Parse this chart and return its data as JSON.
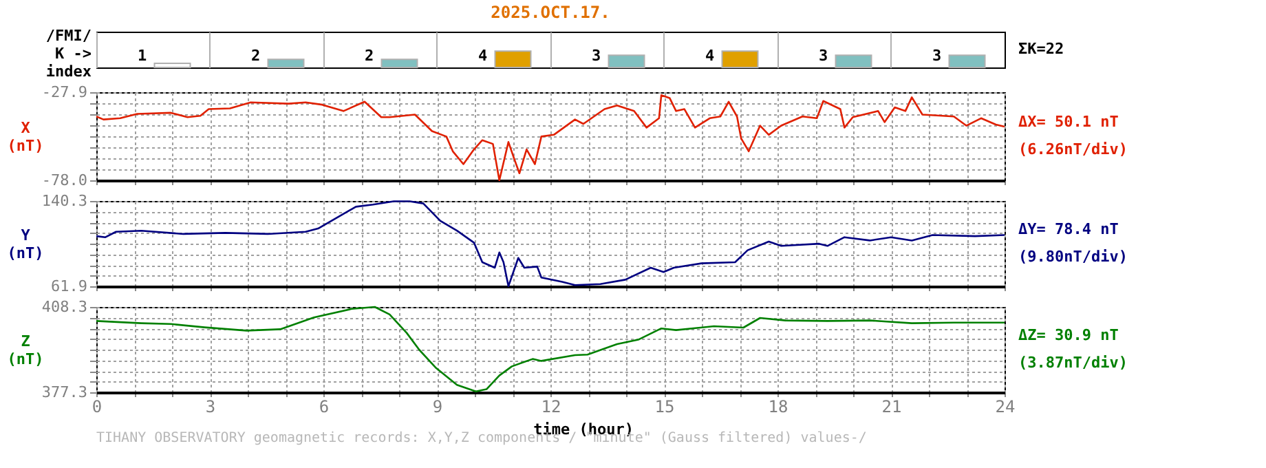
{
  "chart_data": [
    {
      "type": "bar",
      "title": "2025.OCT.17.",
      "ylabel": "/FMI/\nK ->\nindex",
      "categories": [
        null,
        null,
        null,
        null,
        null,
        null,
        null,
        null
      ],
      "values": [
        1,
        2,
        2,
        4,
        3,
        4,
        3,
        3
      ],
      "colors": [
        "#ffffff",
        "#80c0c0",
        "#80c0c0",
        "#e0a000",
        "#80c0c0",
        "#e0a000",
        "#80c0c0",
        "#80c0c0"
      ],
      "data_labels": true,
      "tick_labels": false,
      "annotations": [
        "ΣK=22"
      ]
    },
    {
      "type": "line",
      "ylabel": "X\n(nT)",
      "xlim": [
        0,
        24
      ],
      "ylim": [
        -78.0,
        -27.9
      ],
      "grid": true,
      "tick_labels": "y",
      "xticks": [
        0,
        {
          "value": 1,
          "label": null
        },
        {
          "value": 2,
          "label": null
        },
        3,
        {
          "value": 4,
          "label": null
        },
        {
          "value": 5,
          "label": null
        },
        6,
        {
          "value": 7,
          "label": null
        },
        {
          "value": 8,
          "label": null
        },
        9,
        {
          "value": 10,
          "label": null
        },
        {
          "value": 11,
          "label": null
        },
        12,
        {
          "value": 13,
          "label": null
        },
        {
          "value": 14,
          "label": null
        },
        15,
        {
          "value": 16,
          "label": null
        },
        {
          "value": 17,
          "label": null
        },
        18,
        {
          "value": 19,
          "label": null
        },
        {
          "value": 20,
          "label": null
        },
        21,
        {
          "value": 22,
          "label": null
        },
        {
          "value": 23,
          "label": null
        },
        24
      ],
      "yticks": [
        {
          "value": -78.0,
          "label": "-78.0"
        },
        {
          "value": -71.74,
          "label": null
        },
        {
          "value": -65.48,
          "label": null
        },
        {
          "value": -59.21,
          "label": null
        },
        {
          "value": -52.95,
          "label": null
        },
        {
          "value": -46.69,
          "label": null
        },
        {
          "value": -40.43,
          "label": null
        },
        {
          "value": -34.16,
          "label": null
        },
        -27.9
      ],
      "series": [
        {
          "color": "#e02000",
          "x": [
            0,
            0.19,
            0.63,
            1.08,
            1.97,
            2.41,
            2.75,
            2.97,
            3.53,
            4.08,
            5.08,
            5.53,
            5.97,
            6.53,
            7.09,
            7.53,
            7.75,
            8.42,
            8.87,
            9.25,
            9.42,
            9.7,
            9.98,
            10.2,
            10.48,
            10.65,
            10.89,
            11.04,
            11.18,
            11.37,
            11.59,
            11.76,
            12.09,
            12.65,
            12.87,
            13.43,
            13.76,
            14.21,
            14.54,
            14.87,
            14.93,
            15.15,
            15.32,
            15.54,
            15.82,
            16.21,
            16.49,
            16.71,
            16.93,
            17.04,
            17.24,
            17.54,
            17.77,
            18.1,
            18.66,
            19.04,
            19.21,
            19.66,
            19.77,
            19.99,
            20.66,
            20.83,
            21.1,
            21.38,
            21.55,
            21.83,
            22.66,
            22.99,
            23.38,
            23.77,
            24.0
          ],
          "values": [
            -41.7,
            -43.4,
            -42.7,
            -40.2,
            -39.6,
            -42.1,
            -41.3,
            -37.5,
            -37.1,
            -33.7,
            -34.4,
            -33.7,
            -35.0,
            -38.6,
            -33.3,
            -42.1,
            -42.1,
            -40.6,
            -50.0,
            -53.1,
            -61.5,
            -68.8,
            -60.4,
            -55.2,
            -57.3,
            -78.0,
            -56.2,
            -65.6,
            -74.0,
            -60.4,
            -68.8,
            -53.1,
            -52.1,
            -43.4,
            -45.9,
            -37.5,
            -35.4,
            -38.6,
            -48.0,
            -42.7,
            -29.6,
            -31.2,
            -38.6,
            -37.5,
            -48.0,
            -42.7,
            -41.7,
            -33.3,
            -41.7,
            -54.2,
            -61.5,
            -46.9,
            -52.1,
            -46.9,
            -41.7,
            -42.7,
            -32.9,
            -37.5,
            -48.0,
            -42.1,
            -38.6,
            -44.9,
            -36.5,
            -38.6,
            -30.8,
            -40.6,
            -41.7,
            -46.9,
            -42.7,
            -46.3,
            -47.5
          ]
        }
      ],
      "annotations": [
        "ΔX= 50.1 nT",
        "(6.26nT/div)"
      ]
    },
    {
      "type": "line",
      "ylabel": "Y\n(nT)",
      "xlim": [
        0,
        24
      ],
      "ylim": [
        61.9,
        140.3
      ],
      "grid": true,
      "tick_labels": "y",
      "xticks": [
        0,
        {
          "value": 1,
          "label": null
        },
        {
          "value": 2,
          "label": null
        },
        3,
        {
          "value": 4,
          "label": null
        },
        {
          "value": 5,
          "label": null
        },
        6,
        {
          "value": 7,
          "label": null
        },
        {
          "value": 8,
          "label": null
        },
        9,
        {
          "value": 10,
          "label": null
        },
        {
          "value": 11,
          "label": null
        },
        12,
        {
          "value": 13,
          "label": null
        },
        {
          "value": 14,
          "label": null
        },
        15,
        {
          "value": 16,
          "label": null
        },
        {
          "value": 17,
          "label": null
        },
        18,
        {
          "value": 19,
          "label": null
        },
        {
          "value": 20,
          "label": null
        },
        21,
        {
          "value": 22,
          "label": null
        },
        {
          "value": 23,
          "label": null
        },
        24
      ],
      "yticks": [
        61.9,
        {
          "value": 71.7,
          "label": null
        },
        {
          "value": 81.5,
          "label": null
        },
        {
          "value": 91.3,
          "label": null
        },
        {
          "value": 101.1,
          "label": null
        },
        {
          "value": 110.9,
          "label": null
        },
        {
          "value": 120.7,
          "label": null
        },
        {
          "value": 130.5,
          "label": null
        },
        140.3
      ],
      "series": [
        {
          "color": "#000080",
          "x": [
            0,
            0.24,
            0.52,
            1.19,
            2.3,
            3.41,
            4.53,
            5.53,
            5.86,
            6.86,
            7.31,
            7.86,
            7.98,
            8.28,
            8.64,
            9.09,
            9.53,
            9.98,
            10.2,
            10.53,
            10.65,
            10.76,
            10.89,
            11.15,
            11.31,
            11.65,
            11.76,
            12.31,
            12.65,
            13.32,
            13.98,
            14.65,
            14.99,
            15.26,
            15.99,
            16.88,
            17.21,
            17.77,
            18.1,
            19.1,
            19.32,
            19.77,
            20.44,
            21.0,
            21.55,
            22.1,
            23.22,
            24.0
          ],
          "values": [
            108,
            107,
            112,
            113,
            110,
            111,
            110,
            112,
            115,
            135,
            137,
            140,
            140,
            140,
            138,
            122,
            113,
            102,
            84,
            79,
            93,
            84,
            62,
            88,
            79,
            80,
            70,
            66,
            63,
            64,
            68,
            79,
            75,
            79,
            83,
            84,
            95,
            103,
            99,
            101,
            99,
            107,
            104,
            107,
            104,
            109,
            108,
            109
          ]
        }
      ],
      "annotations": [
        "ΔY= 78.4 nT",
        "(9.80nT/div)"
      ]
    },
    {
      "type": "line",
      "ylabel": "Z\n(nT)",
      "xlabel": "time (hour)",
      "xlim": [
        0,
        24
      ],
      "ylim": [
        377.3,
        408.3
      ],
      "grid": true,
      "xticks": [
        0,
        {
          "value": 1,
          "label": null
        },
        {
          "value": 2,
          "label": null
        },
        3,
        {
          "value": 4,
          "label": null
        },
        {
          "value": 5,
          "label": null
        },
        6,
        {
          "value": 7,
          "label": null
        },
        {
          "value": 8,
          "label": null
        },
        9,
        {
          "value": 10,
          "label": null
        },
        {
          "value": 11,
          "label": null
        },
        12,
        {
          "value": 13,
          "label": null
        },
        {
          "value": 14,
          "label": null
        },
        15,
        {
          "value": 16,
          "label": null
        },
        {
          "value": 17,
          "label": null
        },
        18,
        {
          "value": 19,
          "label": null
        },
        {
          "value": 20,
          "label": null
        },
        21,
        {
          "value": 22,
          "label": null
        },
        {
          "value": 23,
          "label": null
        },
        24
      ],
      "yticks": [
        377.3,
        {
          "value": 381.18,
          "label": null
        },
        {
          "value": 385.05,
          "label": null
        },
        {
          "value": 388.93,
          "label": null
        },
        {
          "value": 392.8,
          "label": null
        },
        {
          "value": 396.68,
          "label": null
        },
        {
          "value": 400.55,
          "label": null
        },
        {
          "value": 404.43,
          "label": null
        },
        408.3
      ],
      "series": [
        {
          "color": "#008000",
          "x": [
            0,
            1.19,
            1.97,
            2.86,
            3.97,
            4.86,
            5.75,
            6.75,
            7.36,
            7.75,
            8.2,
            8.53,
            8.98,
            9.53,
            10.03,
            10.31,
            10.65,
            10.98,
            11.53,
            11.76,
            12.65,
            12.98,
            13.76,
            14.32,
            14.93,
            15.32,
            16.32,
            17.1,
            17.54,
            18.21,
            19.32,
            20.44,
            21.55,
            22.66,
            24.0
          ],
          "values": [
            403.2,
            402.4,
            402.1,
            400.9,
            399.7,
            400.2,
            404.5,
            407.6,
            408.3,
            405.6,
            398.9,
            392.8,
            386.1,
            380.0,
            377.6,
            378.4,
            383.4,
            386.7,
            389.4,
            388.7,
            390.8,
            391.0,
            394.8,
            396.4,
            400.5,
            399.9,
            401.3,
            400.8,
            404.3,
            403.4,
            403.2,
            403.4,
            402.4,
            402.6,
            402.6
          ]
        }
      ],
      "annotations": [
        "ΔZ= 30.9 nT",
        "(3.87nT/div)",
        "TIHANY OBSERVATORY   geomagnetic records:  X,Y,Z  components   / \"minute\" (Gauss filtered) values-/"
      ]
    }
  ]
}
